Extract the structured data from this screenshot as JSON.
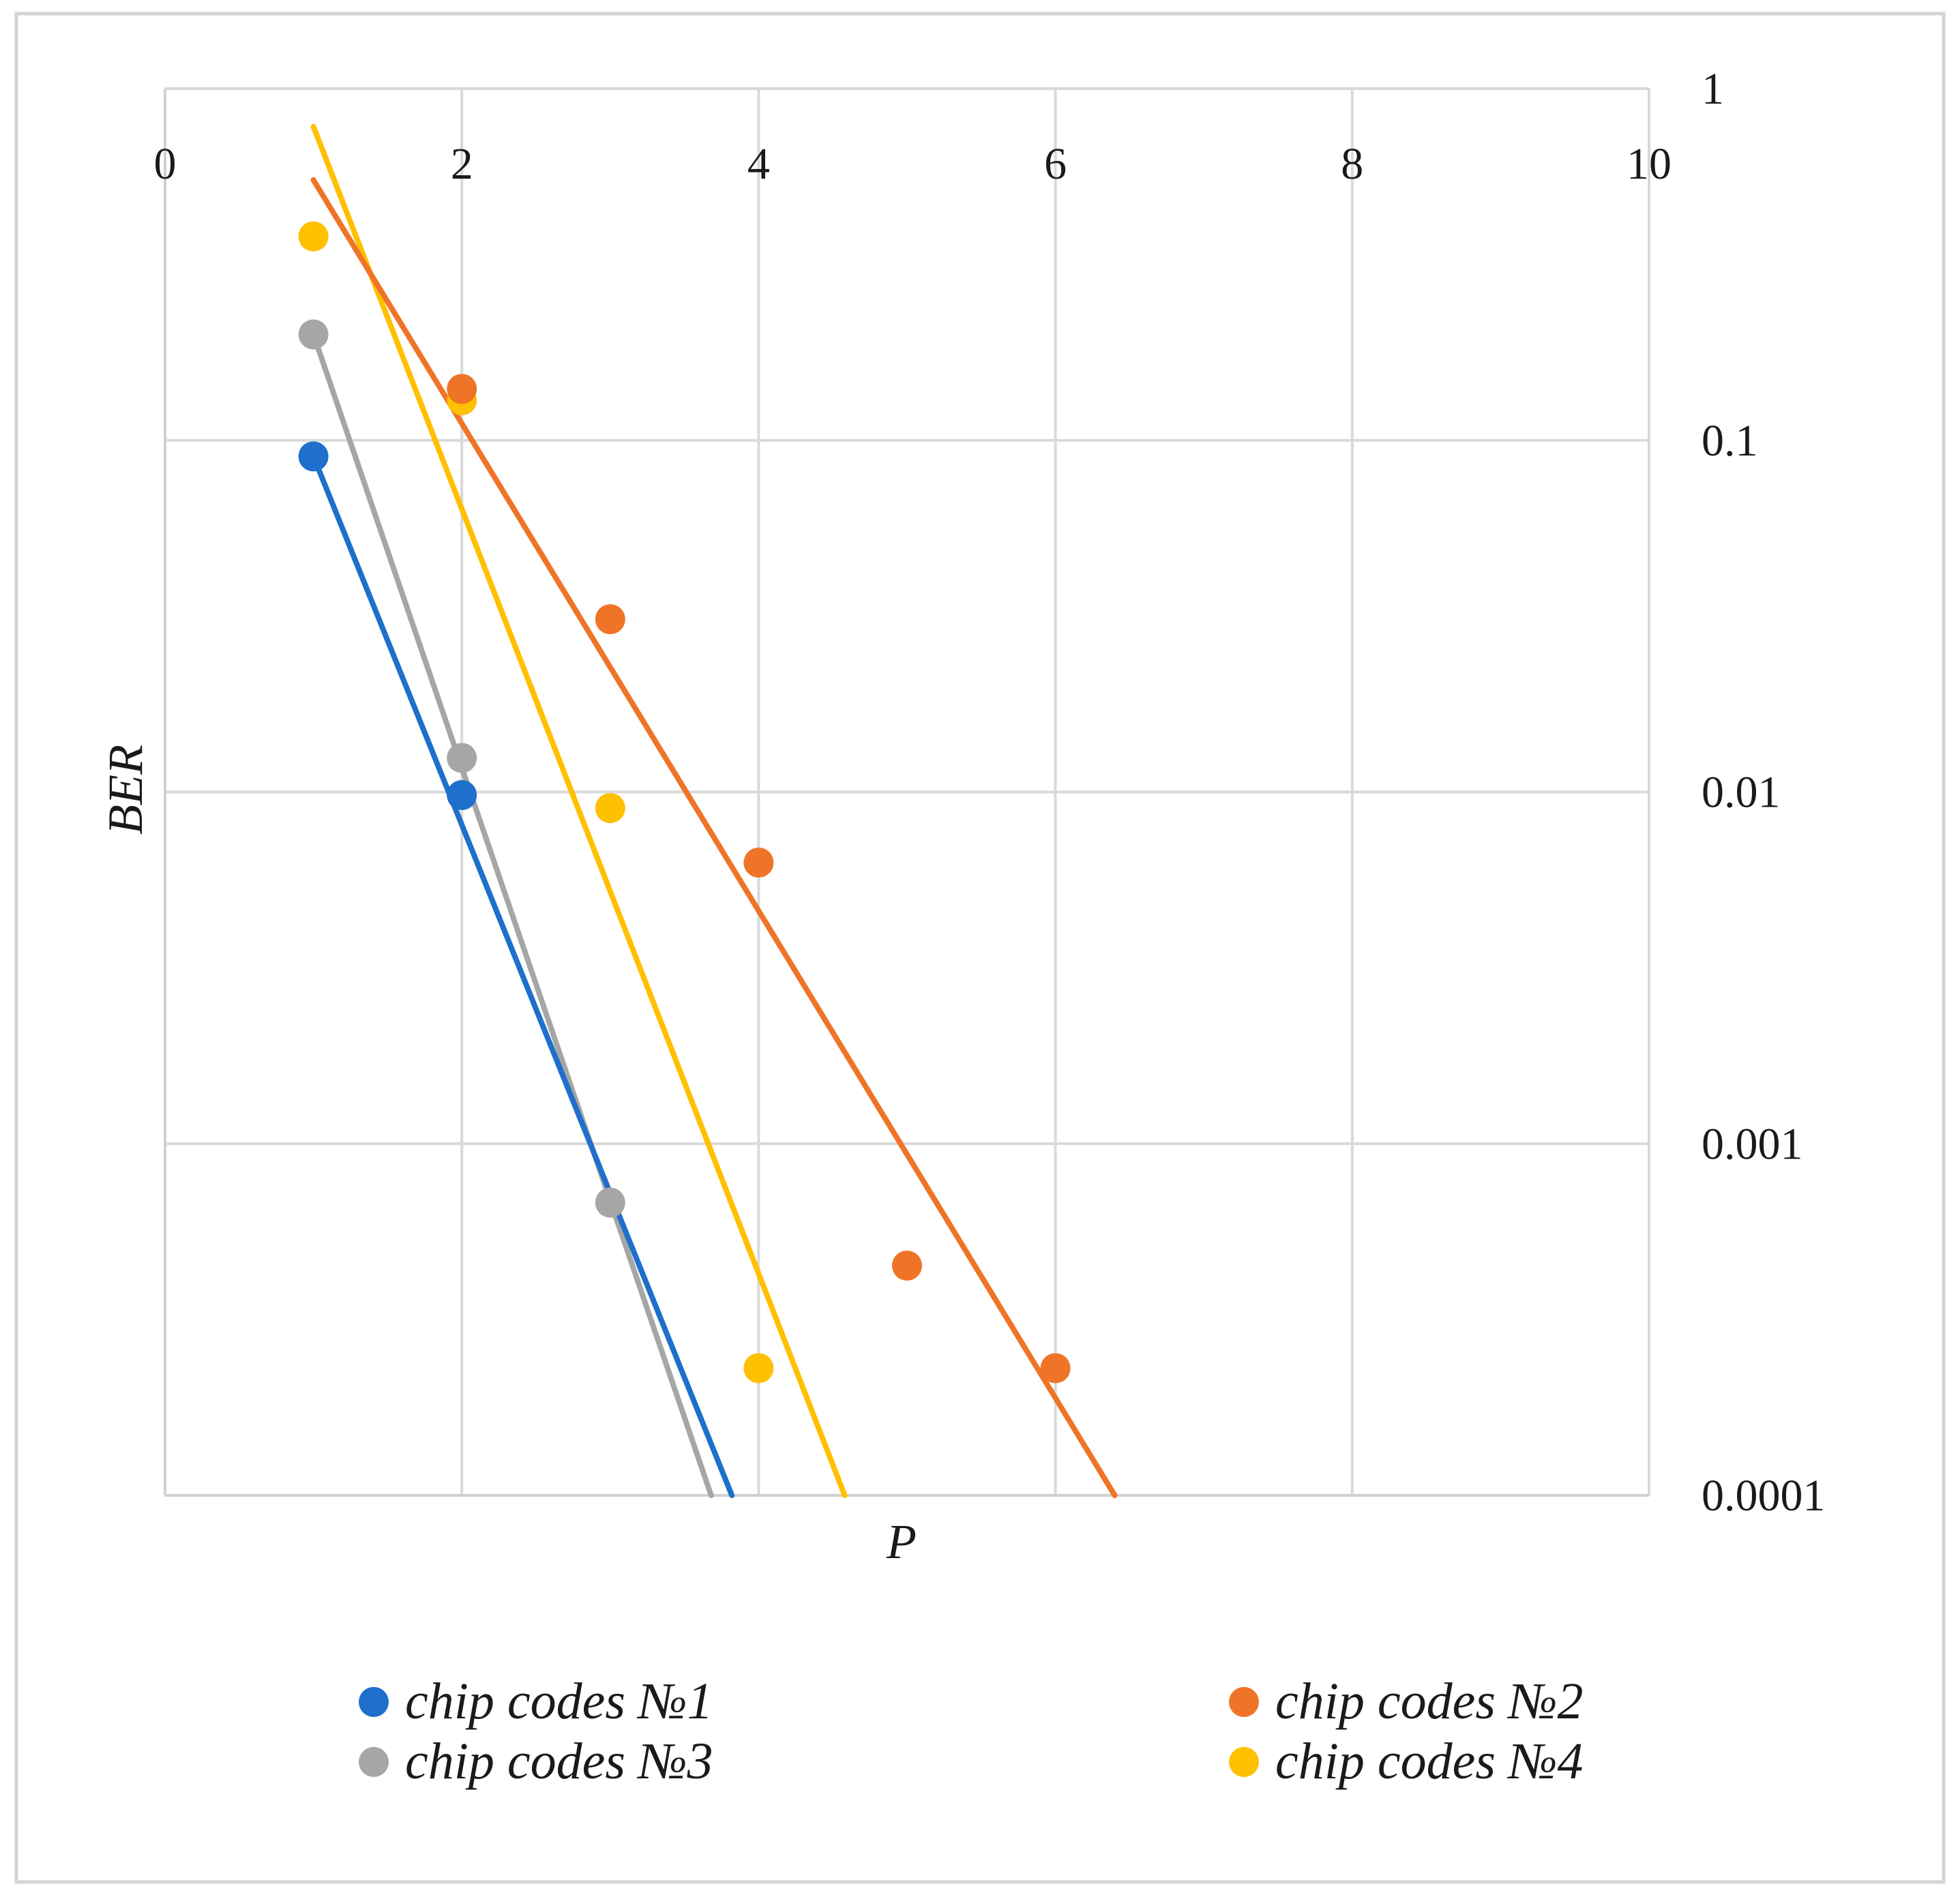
{
  "chart_data": {
    "type": "scatter",
    "title": "",
    "xlabel": "P",
    "ylabel": "BER",
    "x_axis_position": "top",
    "y_axis_position": "right",
    "xlim": [
      0,
      10
    ],
    "ylim": [
      0.0001,
      1
    ],
    "y_scale": "log",
    "grid": true,
    "legend_position": "bottom",
    "x_ticks": [
      "0",
      "2",
      "4",
      "6",
      "8",
      "10"
    ],
    "y_ticks": [
      "1",
      "0.1",
      "0.01",
      "0.001",
      "0.0001"
    ],
    "series": [
      {
        "name": "chip codes №1",
        "color": "#1F6FCC",
        "points": [
          [
            1,
            0.09
          ],
          [
            2,
            0.0098
          ]
        ],
        "trend_line": [
          [
            1,
            0.09
          ],
          [
            3.82,
            0.0001
          ]
        ],
        "line_type": "fit"
      },
      {
        "name": "chip codes №2",
        "color": "#F07427",
        "points": [
          [
            2,
            0.14
          ],
          [
            3,
            0.031
          ],
          [
            4,
            0.0063
          ],
          [
            5,
            0.00045
          ],
          [
            6,
            0.00023
          ]
        ],
        "trend_line": [
          [
            1,
            0.55
          ],
          [
            6.4,
            0.0001
          ]
        ],
        "line_type": "fit"
      },
      {
        "name": "chip codes №3",
        "color": "#A6A6A6",
        "points": [
          [
            1,
            0.2
          ],
          [
            2,
            0.0125
          ],
          [
            3,
            0.00068
          ]
        ],
        "trend_line": [
          [
            1,
            0.2
          ],
          [
            3.68,
            0.0001
          ]
        ],
        "line_type": "fit"
      },
      {
        "name": "chip codes №4",
        "color": "#FFC000",
        "points": [
          [
            1,
            0.38
          ],
          [
            2,
            0.13
          ],
          [
            3,
            0.009
          ],
          [
            4,
            0.00023
          ]
        ],
        "trend_line": [
          [
            1,
            0.78
          ],
          [
            4.58,
            0.0001
          ]
        ],
        "line_type": "fit"
      }
    ]
  }
}
